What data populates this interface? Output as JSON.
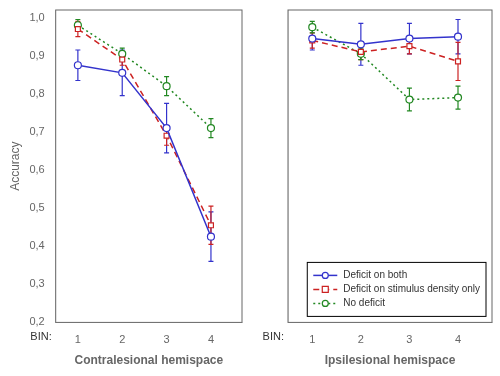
{
  "chart_data": [
    {
      "type": "line",
      "x": [
        1,
        2,
        3,
        4
      ],
      "xlabel": "Contralesional hemispace",
      "ylabel": "Accuracy",
      "annotation": "BIN:",
      "xlim": [
        0.5,
        4.7
      ],
      "xticks": [
        1,
        2,
        3,
        4
      ],
      "ylim": [
        0.2,
        1.02
      ],
      "yticks": [
        {
          "value": 0.2,
          "label": "0,2"
        },
        {
          "value": 0.3,
          "label": "0,3"
        },
        {
          "value": 0.4,
          "label": "0,4"
        },
        {
          "value": 0.5,
          "label": "0,5"
        },
        {
          "value": 0.6,
          "label": "0,6"
        },
        {
          "value": 0.7,
          "label": "0,7"
        },
        {
          "value": 0.8,
          "label": "0,8"
        },
        {
          "value": 0.9,
          "label": "0,9"
        },
        {
          "value": 1.0,
          "label": "1,0"
        }
      ],
      "grid": false,
      "legend": false,
      "series": [
        {
          "name": "Deficit on both",
          "color": "#3333cc",
          "marker": "circle",
          "line_style": "solid",
          "values": [
            0.875,
            0.855,
            0.71,
            0.425
          ],
          "errors": [
            0.04,
            0.06,
            0.065,
            0.065
          ]
        },
        {
          "name": "Deficit on stimulus density only",
          "color": "#cc2222",
          "marker": "square",
          "line_style": "dashed",
          "values": [
            0.97,
            0.89,
            0.69,
            0.455
          ],
          "errors": [
            0.02,
            0.015,
            0.025,
            0.05
          ]
        },
        {
          "name": "No deficit",
          "color": "#228822",
          "marker": "circle",
          "line_style": "dotted",
          "values": [
            0.98,
            0.905,
            0.82,
            0.71
          ],
          "errors": [
            0.015,
            0.015,
            0.025,
            0.025
          ]
        }
      ]
    },
    {
      "type": "line",
      "x": [
        1,
        2,
        3,
        4
      ],
      "xlabel": "Ipsilesional hemispace",
      "annotation": "BIN:",
      "xlim": [
        0.5,
        4.7
      ],
      "xticks": [
        1,
        2,
        3,
        4
      ],
      "ylim": [
        0.2,
        1.02
      ],
      "yticks": [
        0.2,
        0.3,
        0.4,
        0.5,
        0.6,
        0.7,
        0.8,
        0.9,
        1.0
      ],
      "tick_labels": "x",
      "grid": false,
      "legend": "lower right",
      "series": [
        {
          "name": "Deficit on both",
          "color": "#3333cc",
          "marker": "circle",
          "line_style": "solid",
          "values": [
            0.945,
            0.93,
            0.945,
            0.95
          ],
          "errors": [
            0.03,
            0.055,
            0.04,
            0.045
          ]
        },
        {
          "name": "Deficit on stimulus density only",
          "color": "#cc2222",
          "marker": "square",
          "line_style": "dashed",
          "values": [
            0.94,
            0.91,
            0.925,
            0.885
          ],
          "errors": [
            0.02,
            0.02,
            0.02,
            0.05
          ]
        },
        {
          "name": "No deficit",
          "color": "#228822",
          "marker": "circle",
          "line_style": "dotted",
          "values": [
            0.975,
            0.905,
            0.785,
            0.79
          ],
          "errors": [
            0.015,
            0.015,
            0.03,
            0.03
          ]
        }
      ]
    }
  ]
}
